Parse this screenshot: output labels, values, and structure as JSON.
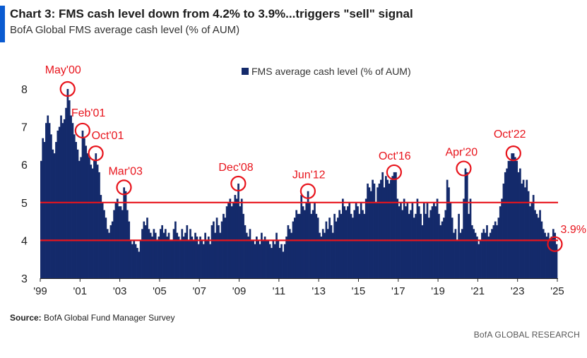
{
  "header": {
    "title": "Chart 3: FMS cash level down from 4.2% to 3.9%...triggers \"sell\" signal",
    "subtitle": "BofA Global FMS average cash level (% of AUM)"
  },
  "footer": {
    "source_label": "Source:",
    "source_text": "BofA Global Fund Manager Survey",
    "brand": "BofA GLOBAL RESEARCH"
  },
  "colors": {
    "bars": "#142a6b",
    "threshold": "#e8141c",
    "annotation": "#e8141c",
    "accent": "#0a5bd1"
  },
  "chart_data": {
    "type": "bar",
    "title": "",
    "xlabel": "",
    "ylabel": "",
    "ylim": [
      3,
      8
    ],
    "yticks": [
      "3",
      "4",
      "5",
      "6",
      "7",
      "8"
    ],
    "xticks": [
      "'99",
      "'01",
      "'03",
      "'05",
      "'07",
      "'09",
      "'11",
      "'13",
      "'15",
      "'17",
      "'19",
      "'21",
      "'23",
      "'25"
    ],
    "x_start": "1999-01",
    "legend": {
      "label": "FMS average cash level (% of AUM)",
      "position": "top"
    },
    "grid": false,
    "reference_lines": [
      {
        "y": 5.0
      },
      {
        "y": 4.0
      }
    ],
    "annotations": [
      {
        "label": "May'00",
        "date": "2000-05",
        "value": 8.0
      },
      {
        "label": "Feb'01",
        "date": "2001-02",
        "value": 6.9
      },
      {
        "label": "Oct'01",
        "date": "2001-10",
        "value": 6.3
      },
      {
        "label": "Mar'03",
        "date": "2003-03",
        "value": 5.4
      },
      {
        "label": "Dec'08",
        "date": "2008-12",
        "value": 5.5
      },
      {
        "label": "Jun'12",
        "date": "2012-06",
        "value": 5.3
      },
      {
        "label": "Oct'16",
        "date": "2016-10",
        "value": 5.8
      },
      {
        "label": "Apr'20",
        "date": "2020-04",
        "value": 5.9
      },
      {
        "label": "Oct'22",
        "date": "2022-10",
        "value": 6.3
      },
      {
        "label": "3.9%",
        "date": "2024-11",
        "value": 3.9
      }
    ],
    "series": [
      {
        "name": "FMS average cash level (% of AUM)",
        "values": [
          6.1,
          6.7,
          6.6,
          7.1,
          7.3,
          7.1,
          6.8,
          6.4,
          6.3,
          6.6,
          6.9,
          7.0,
          7.3,
          7.1,
          7.2,
          7.5,
          8.0,
          7.7,
          7.3,
          7.1,
          6.8,
          6.6,
          6.4,
          6.1,
          6.2,
          6.9,
          6.7,
          6.5,
          6.3,
          6.2,
          6.0,
          5.9,
          6.1,
          6.3,
          6.0,
          5.8,
          5.2,
          5.0,
          4.8,
          4.6,
          4.3,
          4.2,
          4.4,
          4.5,
          4.8,
          5.0,
          5.1,
          4.9,
          4.9,
          4.8,
          5.4,
          5.3,
          4.8,
          4.5,
          4.0,
          3.9,
          4.0,
          3.9,
          3.8,
          3.7,
          4.0,
          4.3,
          4.5,
          4.4,
          4.6,
          4.3,
          4.2,
          4.1,
          4.3,
          4.2,
          4.0,
          4.1,
          4.3,
          4.4,
          4.2,
          4.3,
          4.1,
          4.2,
          4.0,
          4.0,
          4.3,
          4.5,
          4.2,
          4.1,
          4.0,
          4.3,
          4.1,
          4.2,
          4.4,
          4.0,
          4.3,
          4.1,
          4.0,
          4.2,
          4.1,
          3.9,
          4.1,
          4.0,
          3.9,
          4.2,
          4.0,
          4.1,
          3.9,
          4.4,
          4.5,
          4.2,
          4.6,
          4.4,
          4.2,
          4.5,
          4.7,
          4.6,
          4.9,
          5.0,
          5.1,
          4.9,
          5.0,
          5.2,
          5.1,
          5.5,
          4.9,
          5.1,
          4.7,
          4.4,
          4.2,
          4.1,
          4.3,
          4.0,
          4.0,
          3.9,
          4.1,
          4.0,
          3.9,
          4.2,
          4.0,
          4.1,
          4.0,
          4.0,
          3.9,
          3.8,
          4.0,
          3.9,
          4.2,
          4.0,
          3.8,
          3.9,
          3.7,
          3.9,
          4.1,
          4.4,
          4.3,
          4.2,
          4.5,
          4.6,
          4.8,
          4.7,
          4.7,
          5.2,
          4.9,
          4.8,
          5.0,
          5.3,
          5.0,
          4.7,
          4.8,
          5.0,
          4.7,
          4.6,
          4.2,
          4.1,
          4.3,
          4.2,
          4.5,
          4.3,
          4.6,
          4.4,
          4.2,
          4.7,
          4.5,
          4.6,
          4.8,
          4.7,
          5.1,
          4.9,
          4.8,
          4.9,
          5.0,
          4.7,
          4.6,
          4.8,
          5.0,
          4.9,
          4.7,
          5.0,
          4.8,
          4.7,
          5.1,
          5.5,
          5.4,
          5.3,
          5.6,
          5.5,
          5.0,
          5.4,
          5.5,
          5.6,
          5.8,
          5.4,
          5.7,
          5.6,
          5.5,
          5.6,
          5.7,
          5.8,
          5.8,
          5.1,
          4.9,
          5.0,
          4.8,
          5.1,
          4.9,
          5.0,
          4.7,
          4.8,
          5.0,
          4.6,
          4.7,
          5.1,
          4.9,
          4.7,
          4.4,
          5.0,
          4.7,
          5.0,
          4.6,
          4.8,
          4.9,
          5.0,
          4.9,
          5.1,
          4.7,
          4.4,
          4.5,
          4.6,
          4.8,
          5.6,
          5.4,
          5.0,
          4.6,
          4.2,
          4.3,
          4.0,
          4.7,
          4.2,
          4.3,
          5.1,
          5.9,
          5.8,
          4.7,
          5.1,
          4.4,
          4.3,
          4.2,
          4.1,
          3.9,
          4.0,
          4.2,
          4.3,
          4.2,
          4.4,
          4.1,
          4.2,
          4.3,
          4.4,
          4.5,
          4.4,
          4.6,
          4.9,
          5.1,
          5.5,
          5.8,
          5.9,
          6.1,
          6.1,
          6.3,
          6.3,
          6.2,
          6.1,
          5.8,
          5.9,
          5.5,
          5.6,
          5.4,
          5.6,
          5.3,
          4.9,
          5.0,
          5.2,
          4.8,
          4.7,
          4.6,
          4.8,
          4.5,
          4.3,
          4.2,
          4.1,
          4.2,
          4.0,
          4.1,
          4.3,
          4.2,
          3.9
        ]
      }
    ]
  }
}
